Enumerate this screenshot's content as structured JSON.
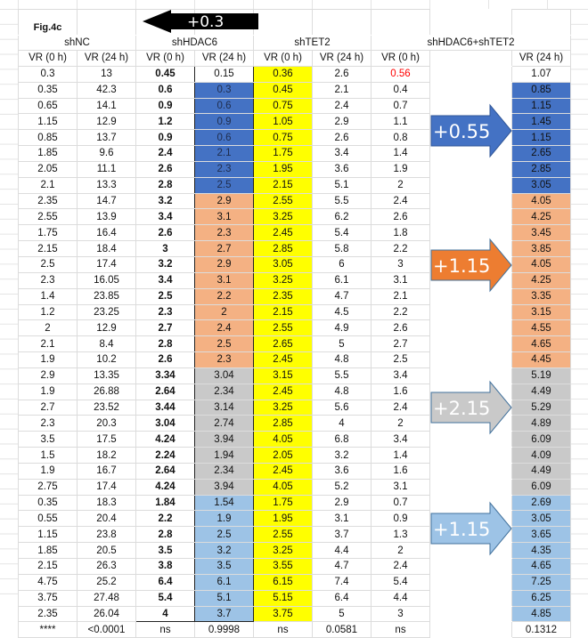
{
  "figure_label": "Fig.4c",
  "groups": [
    "shNC",
    "shHDAC6",
    "shTET2",
    "shHDAC6+shTET2"
  ],
  "column_headers": [
    "VR (0 h)",
    "VR (24 h)",
    "VR (0 h)",
    "VR (24 h)",
    "VR (0 h)",
    "VR (24 h)",
    "VR (0 h)",
    "VR (24 h)"
  ],
  "colors": {
    "blue": "#4472c4",
    "orange": "#f4b183",
    "gray": "#c9c9c9",
    "light_blue": "#9dc3e6",
    "yellow": "#ffff00",
    "red_text": "#ff0000",
    "arrow_black": "#000000",
    "arrow_orange": "#ed7d31",
    "arrow_gray": "#c9c9c9",
    "arrow_light_blue": "#9dc3e6"
  },
  "rows": [
    {
      "band": null,
      "cells": [
        "0.3",
        "13",
        "0.45",
        "0.15",
        "0.36",
        "2.6",
        "0.56",
        "1.07"
      ],
      "red_cell": 6
    },
    {
      "band": "blue",
      "cells": [
        "0.35",
        "42.3",
        "0.6",
        "0.3",
        "0.45",
        "2.1",
        "0.4",
        "0.85"
      ]
    },
    {
      "band": "blue",
      "cells": [
        "0.65",
        "14.1",
        "0.9",
        "0.6",
        "0.75",
        "2.4",
        "0.7",
        "1.15"
      ]
    },
    {
      "band": "blue",
      "cells": [
        "1.15",
        "12.9",
        "1.2",
        "0.9",
        "1.05",
        "2.9",
        "1.1",
        "1.45"
      ]
    },
    {
      "band": "blue",
      "cells": [
        "0.85",
        "13.7",
        "0.9",
        "0.6",
        "0.75",
        "2.6",
        "0.8",
        "1.15"
      ]
    },
    {
      "band": "blue",
      "cells": [
        "1.85",
        "9.6",
        "2.4",
        "2.1",
        "1.75",
        "3.4",
        "1.4",
        "2.65"
      ]
    },
    {
      "band": "blue",
      "cells": [
        "2.05",
        "11.1",
        "2.6",
        "2.3",
        "1.95",
        "3.6",
        "1.9",
        "2.85"
      ]
    },
    {
      "band": "blue",
      "cells": [
        "2.1",
        "13.3",
        "2.8",
        "2.5",
        "2.15",
        "5.1",
        "2",
        "3.05"
      ]
    },
    {
      "band": "orange",
      "cells": [
        "2.35",
        "14.7",
        "3.2",
        "2.9",
        "2.55",
        "5.5",
        "2.4",
        "4.05"
      ]
    },
    {
      "band": "orange",
      "cells": [
        "2.55",
        "13.9",
        "3.4",
        "3.1",
        "3.25",
        "6.2",
        "2.6",
        "4.25"
      ]
    },
    {
      "band": "orange",
      "cells": [
        "1.75",
        "16.4",
        "2.6",
        "2.3",
        "2.45",
        "5.4",
        "1.8",
        "3.45"
      ]
    },
    {
      "band": "orange",
      "cells": [
        "2.15",
        "18.4",
        "3",
        "2.7",
        "2.85",
        "5.8",
        "2.2",
        "3.85"
      ]
    },
    {
      "band": "orange",
      "cells": [
        "2.5",
        "17.4",
        "3.2",
        "2.9",
        "3.05",
        "6",
        "3",
        "4.05"
      ]
    },
    {
      "band": "orange",
      "cells": [
        "2.3",
        "16.05",
        "3.4",
        "3.1",
        "3.25",
        "6.1",
        "3.1",
        "4.25"
      ]
    },
    {
      "band": "orange",
      "cells": [
        "1.4",
        "23.85",
        "2.5",
        "2.2",
        "2.35",
        "4.7",
        "2.1",
        "3.35"
      ]
    },
    {
      "band": "orange",
      "cells": [
        "1.2",
        "23.25",
        "2.3",
        "2",
        "2.15",
        "4.5",
        "2.2",
        "3.15"
      ]
    },
    {
      "band": "orange",
      "cells": [
        "2",
        "12.9",
        "2.7",
        "2.4",
        "2.55",
        "4.9",
        "2.6",
        "4.55"
      ]
    },
    {
      "band": "orange",
      "cells": [
        "2.1",
        "8.4",
        "2.8",
        "2.5",
        "2.65",
        "5",
        "2.7",
        "4.65"
      ]
    },
    {
      "band": "orange",
      "cells": [
        "1.9",
        "10.2",
        "2.6",
        "2.3",
        "2.45",
        "4.8",
        "2.5",
        "4.45"
      ]
    },
    {
      "band": "gray",
      "cells": [
        "2.9",
        "13.35",
        "3.34",
        "3.04",
        "3.15",
        "5.5",
        "3.4",
        "5.19"
      ]
    },
    {
      "band": "gray",
      "cells": [
        "1.9",
        "26.88",
        "2.64",
        "2.34",
        "2.45",
        "4.8",
        "1.6",
        "4.49"
      ]
    },
    {
      "band": "gray",
      "cells": [
        "2.7",
        "23.52",
        "3.44",
        "3.14",
        "3.25",
        "5.6",
        "2.4",
        "5.29"
      ]
    },
    {
      "band": "gray",
      "cells": [
        "2.3",
        "20.3",
        "3.04",
        "2.74",
        "2.85",
        "4",
        "2",
        "4.89"
      ]
    },
    {
      "band": "gray",
      "cells": [
        "3.5",
        "17.5",
        "4.24",
        "3.94",
        "4.05",
        "6.8",
        "3.4",
        "6.09"
      ]
    },
    {
      "band": "gray",
      "cells": [
        "1.5",
        "18.2",
        "2.24",
        "1.94",
        "2.05",
        "3.2",
        "1.4",
        "4.09"
      ]
    },
    {
      "band": "gray",
      "cells": [
        "1.9",
        "16.7",
        "2.64",
        "2.34",
        "2.45",
        "3.6",
        "1.6",
        "4.49"
      ]
    },
    {
      "band": "gray",
      "cells": [
        "2.75",
        "17.4",
        "4.24",
        "3.94",
        "4.05",
        "5.2",
        "3.1",
        "6.09"
      ]
    },
    {
      "band": "light_blue",
      "cells": [
        "0.35",
        "18.3",
        "1.84",
        "1.54",
        "1.75",
        "2.9",
        "0.7",
        "2.69"
      ]
    },
    {
      "band": "light_blue",
      "cells": [
        "0.55",
        "20.4",
        "2.2",
        "1.9",
        "1.95",
        "3.1",
        "0.9",
        "3.05"
      ]
    },
    {
      "band": "light_blue",
      "cells": [
        "1.15",
        "23.8",
        "2.8",
        "2.5",
        "2.55",
        "3.7",
        "1.3",
        "3.65"
      ]
    },
    {
      "band": "light_blue",
      "cells": [
        "1.85",
        "20.5",
        "3.5",
        "3.2",
        "3.25",
        "4.4",
        "2",
        "4.35"
      ]
    },
    {
      "band": "light_blue",
      "cells": [
        "2.15",
        "26.3",
        "3.8",
        "3.5",
        "3.55",
        "4.7",
        "2.4",
        "4.65"
      ]
    },
    {
      "band": "light_blue",
      "cells": [
        "4.75",
        "25.2",
        "6.4",
        "6.1",
        "6.15",
        "7.4",
        "5.4",
        "7.25"
      ]
    },
    {
      "band": "light_blue",
      "cells": [
        "3.75",
        "27.48",
        "5.4",
        "5.1",
        "5.15",
        "6.4",
        "4.4",
        "6.25"
      ]
    },
    {
      "band": "light_blue",
      "cells": [
        "2.35",
        "26.04",
        "4",
        "3.7",
        "3.75",
        "5",
        "3",
        "4.85"
      ]
    }
  ],
  "p_values": [
    "****",
    "<0.0001",
    "ns",
    "0.9998",
    "ns",
    "0.0581",
    "ns",
    "0.1312"
  ],
  "arrows": {
    "black": "+0.3",
    "blue": "+0.55",
    "orange": "+1.15",
    "gray": "+2.15",
    "light_blue": "+1.15"
  }
}
